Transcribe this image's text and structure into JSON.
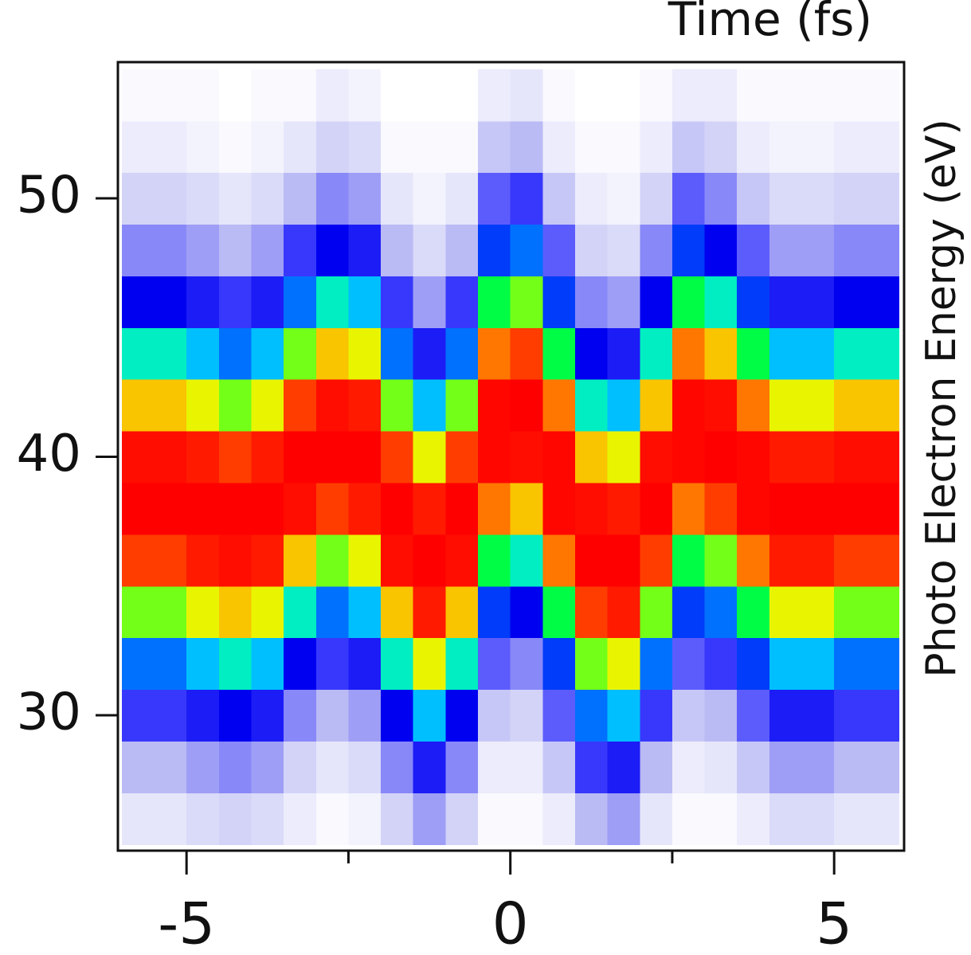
{
  "chart_data": {
    "type": "heatmap",
    "x_label": "Time (fs)",
    "y_label": "Photo Electron Energy (eV)",
    "x": [
      -5.75,
      -5.25,
      -4.75,
      -4.25,
      -3.75,
      -3.25,
      -2.75,
      -2.25,
      -1.75,
      -1.25,
      -0.75,
      -0.25,
      0.25,
      0.75,
      1.25,
      1.75,
      2.25,
      2.75,
      3.25,
      3.75,
      4.25,
      4.75,
      5.25,
      5.75
    ],
    "y": [
      26,
      28,
      30,
      32,
      34,
      36,
      38,
      40,
      42,
      44,
      46,
      48,
      50,
      52,
      54
    ],
    "cell_width": 0.5,
    "cell_height": 2,
    "z": [
      [
        4,
        4,
        6,
        7,
        6,
        3,
        1,
        2,
        7,
        14,
        7,
        1,
        1,
        3,
        11,
        14,
        4,
        1,
        1,
        3,
        6,
        6,
        4,
        4
      ],
      [
        11,
        11,
        14,
        16,
        14,
        7,
        4,
        6,
        16,
        28,
        16,
        3,
        3,
        9,
        24,
        28,
        11,
        3,
        4,
        9,
        14,
        14,
        11,
        11
      ],
      [
        24,
        24,
        28,
        32,
        28,
        16,
        11,
        14,
        32,
        49,
        32,
        9,
        7,
        20,
        43,
        49,
        24,
        9,
        11,
        20,
        28,
        28,
        24,
        24
      ],
      [
        43,
        43,
        49,
        55,
        49,
        32,
        24,
        28,
        55,
        73,
        55,
        20,
        16,
        38,
        67,
        73,
        43,
        20,
        24,
        38,
        49,
        49,
        43,
        43
      ],
      [
        67,
        67,
        73,
        78,
        73,
        55,
        43,
        49,
        78,
        92,
        78,
        38,
        32,
        61,
        88,
        92,
        67,
        38,
        43,
        61,
        73,
        73,
        67,
        67
      ],
      [
        88,
        88,
        92,
        96,
        92,
        78,
        67,
        73,
        96,
        100,
        96,
        61,
        55,
        84,
        100,
        100,
        88,
        61,
        67,
        84,
        92,
        92,
        88,
        88
      ],
      [
        100,
        100,
        100,
        100,
        100,
        96,
        88,
        92,
        100,
        92,
        100,
        84,
        78,
        98,
        96,
        92,
        100,
        84,
        88,
        98,
        100,
        100,
        100,
        100
      ],
      [
        96,
        96,
        92,
        88,
        92,
        100,
        100,
        100,
        88,
        73,
        88,
        98,
        96,
        98,
        78,
        73,
        96,
        98,
        100,
        98,
        92,
        92,
        96,
        96
      ],
      [
        78,
        78,
        73,
        67,
        73,
        88,
        96,
        92,
        67,
        49,
        67,
        98,
        100,
        84,
        55,
        49,
        78,
        98,
        96,
        84,
        73,
        73,
        78,
        78
      ],
      [
        55,
        55,
        49,
        43,
        49,
        67,
        78,
        73,
        43,
        28,
        43,
        84,
        88,
        61,
        32,
        28,
        55,
        84,
        78,
        61,
        49,
        49,
        55,
        55
      ],
      [
        32,
        32,
        28,
        24,
        28,
        43,
        55,
        49,
        24,
        14,
        24,
        61,
        67,
        38,
        16,
        14,
        32,
        61,
        55,
        38,
        28,
        28,
        32,
        32
      ],
      [
        16,
        16,
        14,
        11,
        14,
        24,
        32,
        28,
        11,
        6,
        11,
        38,
        43,
        20,
        7,
        6,
        16,
        38,
        32,
        20,
        14,
        14,
        16,
        16
      ],
      [
        7,
        7,
        6,
        4,
        6,
        11,
        16,
        14,
        4,
        2,
        4,
        20,
        24,
        9,
        3,
        2,
        7,
        20,
        16,
        9,
        6,
        6,
        7,
        7
      ],
      [
        3,
        3,
        2,
        1,
        2,
        4,
        7,
        6,
        1,
        1,
        1,
        9,
        11,
        3,
        1,
        1,
        3,
        9,
        7,
        3,
        2,
        2,
        3,
        3
      ],
      [
        1,
        1,
        1,
        0,
        1,
        1,
        3,
        2,
        0,
        0,
        0,
        3,
        4,
        1,
        0,
        0,
        1,
        3,
        3,
        1,
        1,
        1,
        1,
        1
      ]
    ],
    "colorscale": [
      [
        0,
        "#ffffff"
      ],
      [
        4,
        "#e6e6fb"
      ],
      [
        12,
        "#b4b4f4"
      ],
      [
        22,
        "#4646ff"
      ],
      [
        32,
        "#0000f0"
      ],
      [
        42,
        "#0064ff"
      ],
      [
        52,
        "#00e6ff"
      ],
      [
        62,
        "#00ff30"
      ],
      [
        72,
        "#e6ff00"
      ],
      [
        80,
        "#ffb000"
      ],
      [
        90,
        "#ff2000"
      ],
      [
        100,
        "#ff0000"
      ]
    ],
    "xlim": [
      -6.06,
      6.08
    ],
    "ylim": [
      24.76,
      55.27
    ],
    "xticks": [
      -5,
      0,
      5
    ],
    "xminor_ticks": [
      -2.5,
      2.5
    ],
    "yticks": [
      30,
      40,
      50
    ]
  }
}
